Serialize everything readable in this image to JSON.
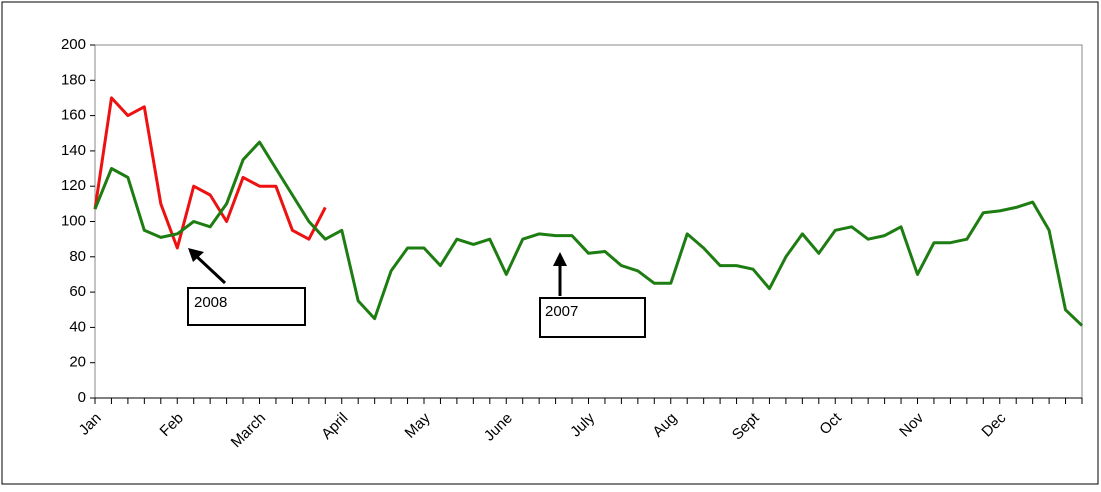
{
  "chart_data": {
    "type": "line",
    "categories": [
      "Jan",
      null,
      null,
      null,
      null,
      "Feb",
      null,
      null,
      null,
      null,
      "March",
      null,
      null,
      null,
      null,
      "April",
      null,
      null,
      null,
      null,
      "May",
      null,
      null,
      null,
      null,
      "June",
      null,
      null,
      null,
      null,
      "July",
      null,
      null,
      null,
      null,
      "Aug",
      null,
      null,
      null,
      null,
      "Sept",
      null,
      null,
      null,
      null,
      "Oct",
      null,
      null,
      null,
      null,
      "Nov",
      null,
      null,
      null,
      null,
      "Dec",
      null,
      null,
      null,
      null,
      null
    ],
    "series": [
      {
        "name": "2007",
        "color": "#1e7d12",
        "values": [
          107,
          130,
          125,
          95,
          91,
          93,
          100,
          97,
          110,
          135,
          145,
          130,
          115,
          100,
          90,
          95,
          55,
          45,
          72,
          85,
          85,
          75,
          90,
          87,
          90,
          70,
          90,
          93,
          92,
          92,
          82,
          83,
          75,
          72,
          65,
          65,
          93,
          85,
          75,
          75,
          73,
          62,
          80,
          93,
          82,
          95,
          97,
          90,
          92,
          97,
          70,
          88,
          88,
          90,
          105,
          106,
          108,
          111,
          95,
          50,
          41
        ]
      },
      {
        "name": "2008",
        "color": "#ee1111",
        "values": [
          107,
          170,
          160,
          165,
          110,
          85,
          120,
          115,
          100,
          125,
          120,
          120,
          95,
          90,
          108,
          null,
          null,
          null,
          null,
          null,
          null,
          null,
          null,
          null,
          null,
          null,
          null,
          null,
          null,
          null,
          null,
          null,
          null,
          null,
          null,
          null,
          null,
          null,
          null,
          null,
          null,
          null,
          null,
          null,
          null,
          null,
          null,
          null,
          null,
          null,
          null,
          null,
          null,
          null,
          null,
          null,
          null,
          null,
          null,
          null,
          null
        ]
      }
    ],
    "ylim": [
      0,
      200
    ],
    "yticks": [
      0,
      20,
      40,
      60,
      80,
      100,
      120,
      140,
      160,
      180,
      200
    ],
    "grid": false
  }
}
